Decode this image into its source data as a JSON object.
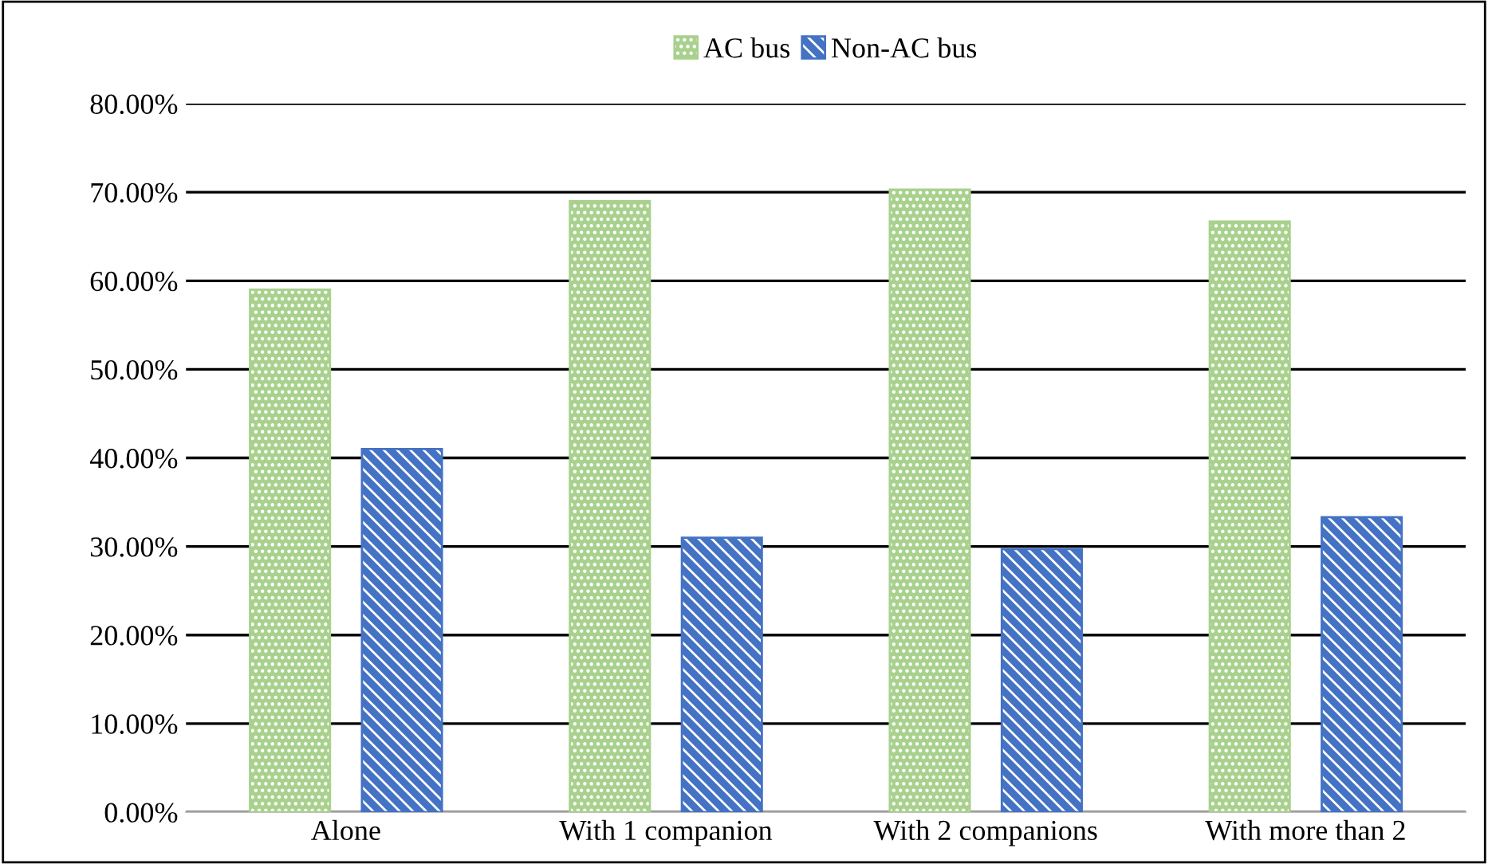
{
  "chart_data": {
    "type": "bar",
    "categories": [
      "Alone",
      "With 1 companion",
      "With 2 companions",
      "With more than 2"
    ],
    "series": [
      {
        "name": "AC bus",
        "color": "#a9d18e",
        "values": [
          59.0,
          69.0,
          70.3,
          66.7
        ]
      },
      {
        "name": "Non-AC bus",
        "color": "#4472c4",
        "values": [
          41.0,
          31.0,
          29.7,
          33.3
        ]
      }
    ],
    "ylim": [
      0,
      80
    ],
    "yticks": [
      {
        "value": 0,
        "label": "0.00%"
      },
      {
        "value": 10,
        "label": "10.00%"
      },
      {
        "value": 20,
        "label": "20.00%"
      },
      {
        "value": 30,
        "label": "30.00%"
      },
      {
        "value": 40,
        "label": "40.00%"
      },
      {
        "value": 50,
        "label": "50.00%"
      },
      {
        "value": 60,
        "label": "60.00%"
      },
      {
        "value": 70,
        "label": "70.00%"
      },
      {
        "value": 80,
        "label": "80.00%"
      }
    ],
    "grid": "y",
    "legend": "top"
  }
}
